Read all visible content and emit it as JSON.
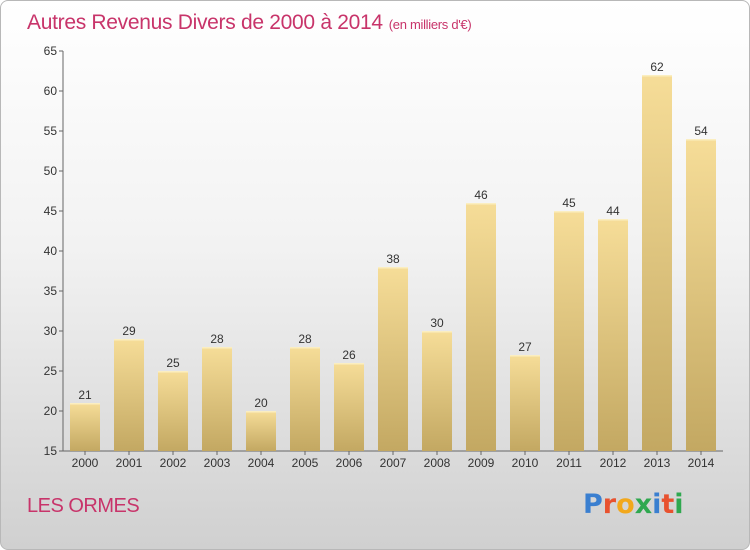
{
  "title": {
    "main": "Autres Revenus Divers de 2000 à 2014",
    "unit": "(en milliers d'€)"
  },
  "place": "LES ORMES",
  "brand": {
    "letters": [
      "P",
      "r",
      "o",
      "x",
      "i",
      "t",
      "i"
    ],
    "colors": [
      "#3a7fd0",
      "#e8522f",
      "#f2a81c",
      "#2fa84f",
      "#3a7fd0",
      "#e8522f",
      "#2fa84f"
    ]
  },
  "colors": {
    "title": "#c8346a",
    "bar_light": "#f6dd98",
    "bar_dark": "#c3a862",
    "axis": "#666666"
  },
  "chart_data": {
    "type": "bar",
    "title": "Autres Revenus Divers de 2000 à 2014",
    "ylabel": "",
    "xlabel": "",
    "ylim": [
      15,
      65
    ],
    "yticks": [
      15,
      20,
      25,
      30,
      35,
      40,
      45,
      50,
      55,
      60,
      65
    ],
    "grid": false,
    "categories": [
      "2000",
      "2001",
      "2002",
      "2003",
      "2004",
      "2005",
      "2006",
      "2007",
      "2008",
      "2009",
      "2010",
      "2011",
      "2012",
      "2013",
      "2014"
    ],
    "values": [
      21,
      29,
      25,
      28,
      20,
      28,
      26,
      38,
      30,
      46,
      27,
      45,
      44,
      62,
      54
    ]
  }
}
